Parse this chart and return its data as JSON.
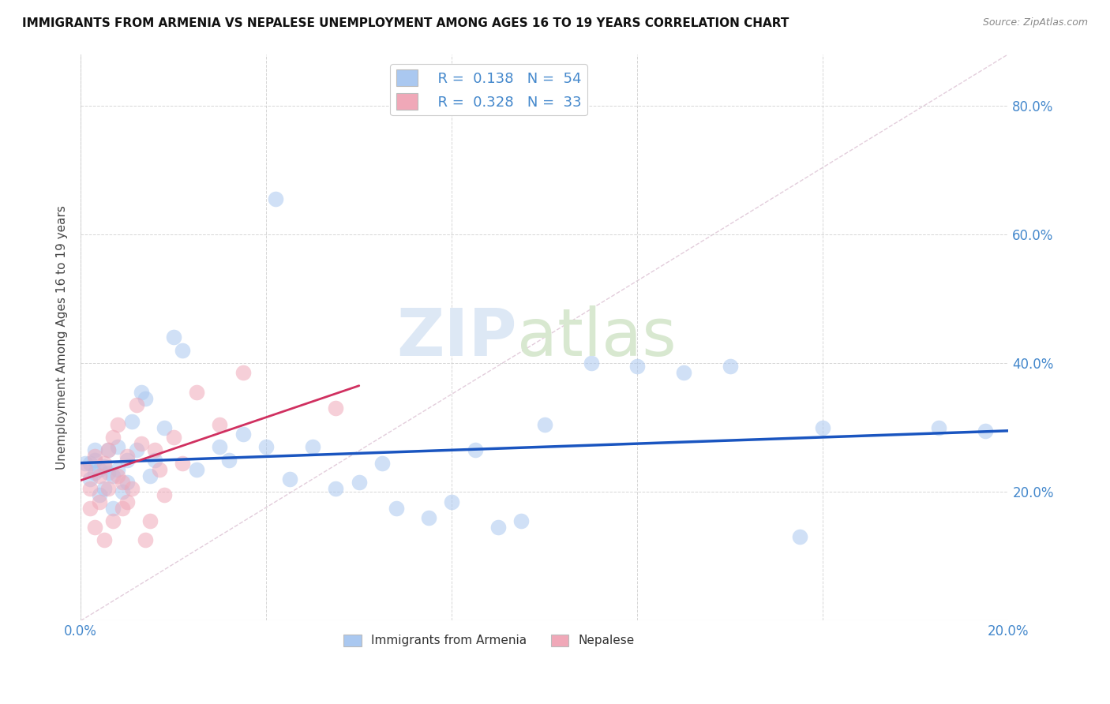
{
  "title": "IMMIGRANTS FROM ARMENIA VS NEPALESE UNEMPLOYMENT AMONG AGES 16 TO 19 YEARS CORRELATION CHART",
  "source": "Source: ZipAtlas.com",
  "ylabel": "Unemployment Among Ages 16 to 19 years",
  "xlim": [
    0.0,
    0.2
  ],
  "ylim": [
    0.0,
    0.88
  ],
  "xtick_positions": [
    0.0,
    0.04,
    0.08,
    0.12,
    0.16,
    0.2
  ],
  "xtick_labels": [
    "0.0%",
    "",
    "",
    "",
    "",
    "20.0%"
  ],
  "ytick_positions": [
    0.0,
    0.2,
    0.4,
    0.6,
    0.8
  ],
  "ytick_labels_right": [
    "",
    "20.0%",
    "40.0%",
    "60.0%",
    "80.0%"
  ],
  "armenia_color": "#aac8f0",
  "nepalese_color": "#f0a8b8",
  "armenia_line_color": "#1a55c0",
  "nepalese_line_color": "#d03060",
  "diagonal_color": "#e0c8d8",
  "watermark_zip_color": "#dde8f5",
  "watermark_atlas_color": "#d8e8d0",
  "armenia_line_x0": 0.0,
  "armenia_line_y0": 0.245,
  "armenia_line_x1": 0.2,
  "armenia_line_y1": 0.295,
  "nepalese_line_x0": 0.0,
  "nepalese_line_y0": 0.218,
  "nepalese_line_x1": 0.06,
  "nepalese_line_y1": 0.365,
  "armenia_x": [
    0.001,
    0.002,
    0.002,
    0.003,
    0.003,
    0.003,
    0.004,
    0.004,
    0.005,
    0.005,
    0.006,
    0.006,
    0.007,
    0.007,
    0.008,
    0.008,
    0.009,
    0.01,
    0.01,
    0.011,
    0.012,
    0.013,
    0.014,
    0.015,
    0.016,
    0.018,
    0.02,
    0.022,
    0.025,
    0.03,
    0.032,
    0.035,
    0.04,
    0.042,
    0.045,
    0.05,
    0.055,
    0.06,
    0.065,
    0.068,
    0.075,
    0.08,
    0.085,
    0.09,
    0.095,
    0.1,
    0.11,
    0.12,
    0.13,
    0.14,
    0.155,
    0.16,
    0.185,
    0.195
  ],
  "armenia_y": [
    0.245,
    0.245,
    0.22,
    0.265,
    0.25,
    0.23,
    0.195,
    0.235,
    0.205,
    0.24,
    0.23,
    0.265,
    0.175,
    0.225,
    0.235,
    0.27,
    0.2,
    0.25,
    0.215,
    0.31,
    0.265,
    0.355,
    0.345,
    0.225,
    0.25,
    0.3,
    0.44,
    0.42,
    0.235,
    0.27,
    0.25,
    0.29,
    0.27,
    0.655,
    0.22,
    0.27,
    0.205,
    0.215,
    0.245,
    0.175,
    0.16,
    0.185,
    0.265,
    0.145,
    0.155,
    0.305,
    0.4,
    0.395,
    0.385,
    0.395,
    0.13,
    0.3,
    0.3,
    0.295
  ],
  "nepalese_x": [
    0.001,
    0.002,
    0.002,
    0.003,
    0.003,
    0.004,
    0.004,
    0.005,
    0.005,
    0.006,
    0.006,
    0.007,
    0.007,
    0.008,
    0.008,
    0.009,
    0.009,
    0.01,
    0.01,
    0.011,
    0.012,
    0.013,
    0.014,
    0.015,
    0.016,
    0.017,
    0.018,
    0.02,
    0.022,
    0.025,
    0.03,
    0.035,
    0.055
  ],
  "nepalese_y": [
    0.235,
    0.175,
    0.205,
    0.255,
    0.145,
    0.225,
    0.185,
    0.245,
    0.125,
    0.265,
    0.205,
    0.285,
    0.155,
    0.225,
    0.305,
    0.215,
    0.175,
    0.185,
    0.255,
    0.205,
    0.335,
    0.275,
    0.125,
    0.155,
    0.265,
    0.235,
    0.195,
    0.285,
    0.245,
    0.355,
    0.305,
    0.385,
    0.33
  ]
}
